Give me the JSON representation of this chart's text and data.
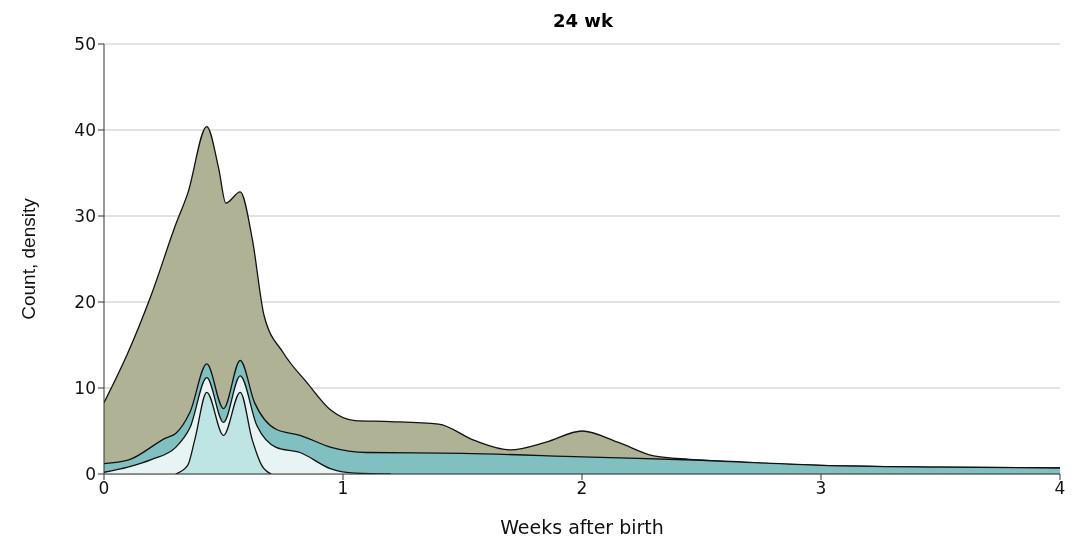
{
  "chart_data": {
    "type": "area",
    "title": "24 wk",
    "xlabel": "Weeks after birth",
    "ylabel": "Count, density",
    "xlim": [
      0,
      4
    ],
    "xticks": [
      0,
      1,
      2,
      3,
      4
    ],
    "ylim": [
      0,
      50
    ],
    "yticks": [
      0,
      10,
      20,
      30,
      40,
      50
    ],
    "grid": "y",
    "series": [
      {
        "color": "#b0b295",
        "x": [
          0,
          0.1,
          0.2,
          0.3,
          0.35,
          0.43,
          0.48,
          0.51,
          0.57,
          0.62,
          0.67,
          0.75,
          0.85,
          0.95,
          1.05,
          1.2,
          1.4,
          1.55,
          1.7,
          1.85,
          2.0,
          2.15,
          2.3,
          2.45,
          2.5,
          3,
          3.5,
          4
        ],
        "values": [
          8.3,
          14.1,
          21,
          29,
          32.6,
          40.4,
          35.5,
          31.5,
          32.8,
          27.4,
          18.4,
          14.1,
          10.6,
          7.4,
          6.2,
          6.1,
          5.8,
          3.9,
          2.8,
          3.7,
          5.0,
          3.7,
          2.1,
          1.7,
          1.6,
          1.0,
          0.8,
          0.7
        ]
      },
      {
        "color": "#80c0c0",
        "x": [
          0,
          0.1,
          0.26,
          0.3,
          0.36,
          0.43,
          0.5,
          0.57,
          0.63,
          0.72,
          0.82,
          0.95,
          1.1,
          1.5,
          2,
          2.5,
          3,
          3.5,
          4
        ],
        "values": [
          1.2,
          1.6,
          4.2,
          4.7,
          7.2,
          12.8,
          7.6,
          13.2,
          8.3,
          5.2,
          4.5,
          3.1,
          2.5,
          2.4,
          2.0,
          1.6,
          1.0,
          0.8,
          0.7
        ]
      },
      {
        "color": "#e8f4f4",
        "x": [
          0,
          0.1,
          0.2,
          0.3,
          0.36,
          0.43,
          0.5,
          0.57,
          0.64,
          0.72,
          0.82,
          0.95,
          1.05,
          1.2
        ],
        "values": [
          0.2,
          0.8,
          1.7,
          3.1,
          5.4,
          11.2,
          6.0,
          11.4,
          5.6,
          3.1,
          2.5,
          0.6,
          0.1,
          0
        ]
      },
      {
        "color": "#bfe4e4",
        "x": [
          0.3,
          0.35,
          0.38,
          0.43,
          0.5,
          0.57,
          0.62,
          0.66,
          0.7
        ],
        "values": [
          0,
          1,
          4,
          9.5,
          4.5,
          9.5,
          4,
          1,
          0
        ]
      }
    ]
  }
}
